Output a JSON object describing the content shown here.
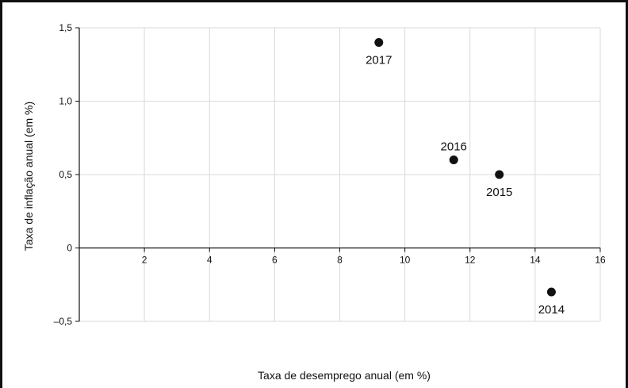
{
  "chart_data": {
    "type": "scatter",
    "title": "",
    "xlabel": "Taxa de desemprego anual (em %)",
    "ylabel": "Taxa de inflação anual (em %)",
    "xlim": [
      0,
      16
    ],
    "ylim": [
      -0.5,
      1.5
    ],
    "grid": true,
    "x_ticks": [
      {
        "value": 2,
        "label": "2"
      },
      {
        "value": 4,
        "label": "4"
      },
      {
        "value": 6,
        "label": "6"
      },
      {
        "value": 8,
        "label": "8"
      },
      {
        "value": 10,
        "label": "10"
      },
      {
        "value": 12,
        "label": "12"
      },
      {
        "value": 14,
        "label": "14"
      },
      {
        "value": 16,
        "label": "16"
      }
    ],
    "y_ticks": [
      {
        "value": 1.5,
        "label": "1,5"
      },
      {
        "value": 1.0,
        "label": "1,0"
      },
      {
        "value": 0.5,
        "label": "0,5"
      },
      {
        "value": 0,
        "label": "0"
      },
      {
        "value": -0.5,
        "label": "–0,5"
      }
    ],
    "points": [
      {
        "label": "2017",
        "x": 9.2,
        "y": 1.4,
        "label_pos": "below"
      },
      {
        "label": "2016",
        "x": 11.5,
        "y": 0.6,
        "label_pos": "above"
      },
      {
        "label": "2015",
        "x": 12.9,
        "y": 0.5,
        "label_pos": "below"
      },
      {
        "label": "2014",
        "x": 14.5,
        "y": -0.3,
        "label_pos": "below"
      }
    ],
    "colors": {
      "points": "#111111",
      "grid": "#d9d9d9",
      "axis": "#111111"
    }
  }
}
